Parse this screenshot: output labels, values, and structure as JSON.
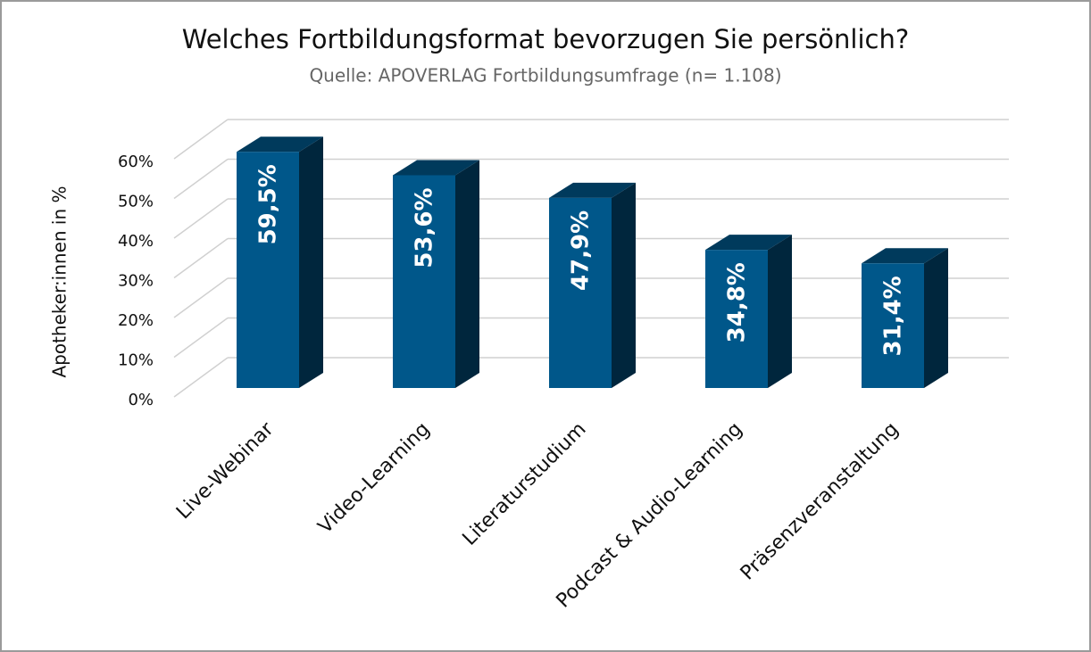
{
  "chart_data": {
    "type": "bar3d",
    "title": "Welches Fortbildungsformat bevorzugen Sie persönlich?",
    "subtitle": "Quelle: APOVERLAG Fortbildungsumfrage (n= 1.108)",
    "y_label": "Apotheker:innen in %",
    "categories": [
      "Live-Webinar",
      "Video-Learning",
      "Literaturstudium",
      "Podcast & Audio-Learning",
      "Präsenzveranstaltung"
    ],
    "values": [
      59.5,
      53.6,
      47.9,
      34.8,
      31.4
    ],
    "value_labels": [
      "59,5%",
      "53,6%",
      "47,9%",
      "34,8%",
      "31,4%"
    ],
    "color": "#00578a",
    "ylim": [
      0,
      60
    ],
    "yticks": [
      {
        "value": 0,
        "label": "0%"
      },
      {
        "value": 10,
        "label": "10%"
      },
      {
        "value": 20,
        "label": "20%"
      },
      {
        "value": 30,
        "label": "30%"
      },
      {
        "value": 40,
        "label": "40%"
      },
      {
        "value": 50,
        "label": "50%"
      },
      {
        "value": 60,
        "label": "60%"
      }
    ],
    "grid": true
  }
}
